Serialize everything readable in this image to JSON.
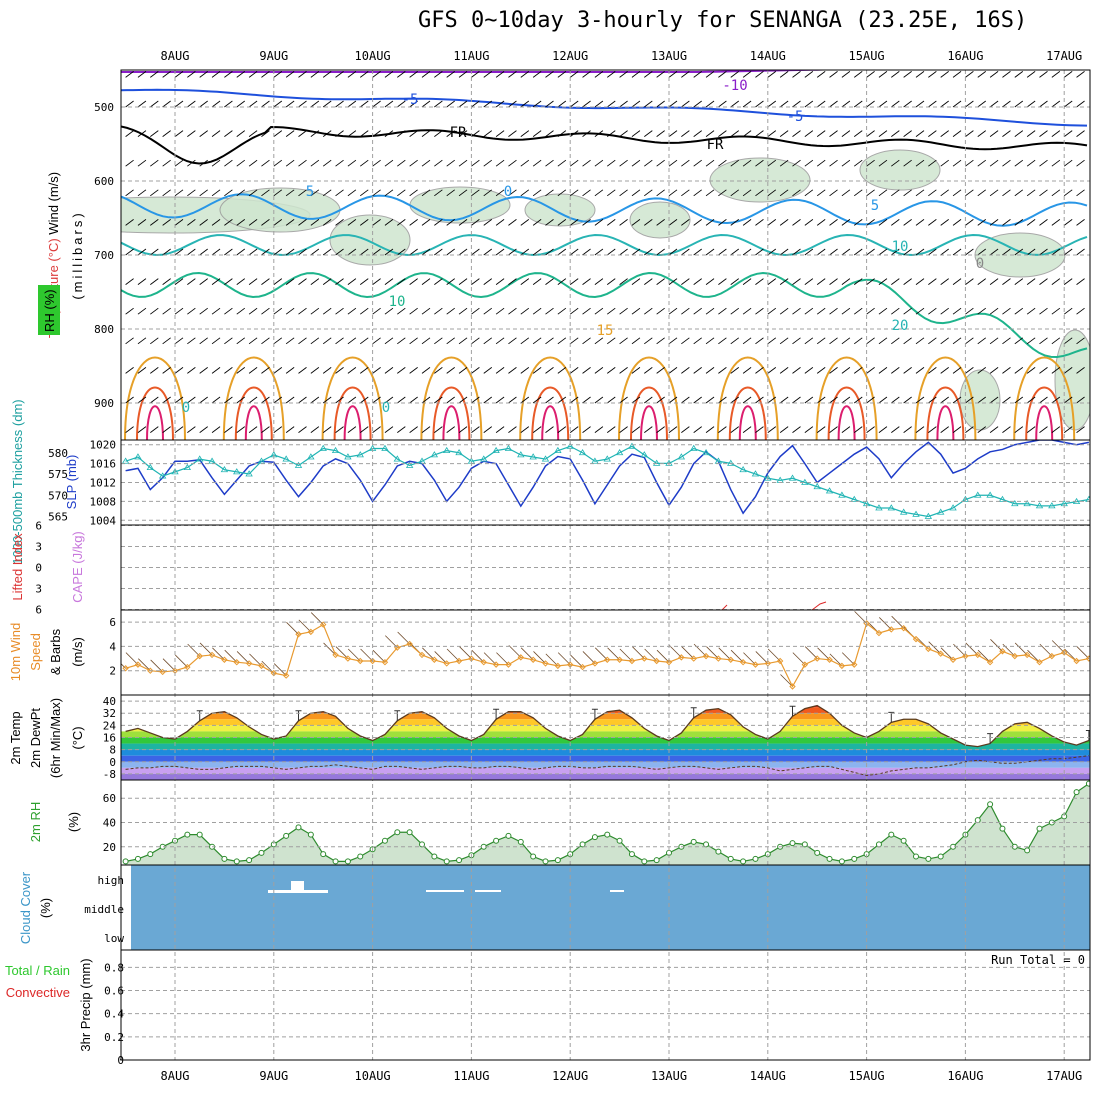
{
  "title": "GFS 0~10day 3-hourly for SENANGA (23.25E, 16S)",
  "dates": [
    "8AUG",
    "9AUG",
    "10AUG",
    "11AUG",
    "12AUG",
    "13AUG",
    "14AUG",
    "15AUG",
    "16AUG",
    "17AUG"
  ],
  "colors": {
    "grid": "#a0a0a0",
    "rh_fill": "#cfe6cf",
    "slp": "#1e3cc8",
    "thickness": "#20b4b4",
    "wind": "#e89a30",
    "cloud_bg": "#6aa8d4",
    "rh2m": "#2e8b2e"
  },
  "chart_data": [
    {
      "type": "line",
      "name": "upper-air-cross-section",
      "ylabel": "Wind (m/s) Temperature (°C) RH (%) (millibars)",
      "ylabels": {
        "wind": "Wind (m/s)",
        "temperature": "Temperature (°C)",
        "rh": "RH (%)",
        "units": "(millibars)"
      },
      "y_ticks": [
        500,
        600,
        700,
        800,
        900
      ],
      "ylim": [
        950,
        450
      ],
      "contour_labels": [
        "-10",
        "-5",
        "-5",
        "FR",
        "FR",
        "5",
        "0",
        "5",
        "10",
        "10",
        "15",
        "20",
        "0",
        "0",
        "0"
      ]
    },
    {
      "type": "line",
      "name": "slp-thickness",
      "ylabels": {
        "left": "1000-500mb Thickness (dm)",
        "right": "SLP (mb)"
      },
      "left_ticks": [
        565,
        570,
        575,
        580
      ],
      "right_ticks": [
        1004,
        1008,
        1012,
        1016,
        1020
      ],
      "x": [
        0,
        1,
        2,
        3,
        4,
        5,
        6,
        7,
        8,
        9,
        10,
        11,
        12,
        13,
        14,
        15,
        16,
        17,
        18,
        19,
        20,
        21,
        22,
        23,
        24,
        25,
        26,
        27,
        28,
        29,
        30,
        31,
        32,
        33,
        34,
        35,
        36,
        37,
        38,
        39,
        40,
        41,
        42,
        43,
        44,
        45,
        46,
        47,
        48,
        49,
        50,
        51,
        52,
        53,
        54,
        55,
        56,
        57,
        58,
        59,
        60,
        61,
        62,
        63,
        64,
        65,
        66,
        67,
        68,
        69,
        70,
        71,
        72,
        73,
        74,
        75,
        76,
        77,
        78
      ],
      "series": [
        {
          "name": "SLP (mb)",
          "values": [
            1014.5,
            1015,
            1010.5,
            1013,
            1016.5,
            1016.5,
            1016.8,
            1013,
            1009.5,
            1012.5,
            1015.5,
            1016.5,
            1016.3,
            1012.5,
            1009,
            1012,
            1015.5,
            1017,
            1016,
            1012.5,
            1008,
            1011.5,
            1015.5,
            1016.5,
            1016,
            1012.5,
            1008,
            1011,
            1015,
            1016.5,
            1016,
            1011.5,
            1007,
            1011,
            1015.5,
            1017.5,
            1017,
            1012.5,
            1007.5,
            1011.5,
            1015.5,
            1018,
            1017.3,
            1012,
            1007.2,
            1011,
            1016,
            1018.5,
            1016.5,
            1010.5,
            1005.5,
            1009,
            1014,
            1017.5,
            1019.8,
            1016,
            1012,
            1014,
            1016,
            1018,
            1019.5,
            1017,
            1013,
            1016,
            1018.5,
            1020.5,
            1018,
            1014,
            1015,
            1017,
            1018.5,
            1019,
            1020,
            1020.5,
            1021,
            1021,
            1020.5,
            1020,
            1020.5
          ]
        },
        {
          "name": "Thickness (dm)",
          "values": [
            578,
            579,
            576.5,
            574.5,
            575.5,
            576.5,
            578.5,
            578,
            576,
            575.5,
            575,
            578,
            579.5,
            578.5,
            577,
            579,
            581,
            580.5,
            579,
            579.5,
            581,
            581,
            578.5,
            577,
            578,
            579.5,
            580.5,
            580,
            578,
            578.5,
            580.5,
            581,
            579.5,
            579,
            578.5,
            580.5,
            581.5,
            580,
            578,
            578.5,
            580,
            581.5,
            579.5,
            577.5,
            577.5,
            579,
            581,
            580,
            578,
            577.5,
            576,
            575,
            574,
            573.5,
            574,
            573,
            572,
            571,
            570,
            569,
            568,
            567,
            567,
            566,
            565.5,
            565,
            566,
            567,
            569,
            570,
            570,
            569,
            568,
            568,
            567.5,
            567.5,
            568,
            568.5,
            569
          ]
        }
      ]
    },
    {
      "type": "line",
      "name": "lifted-index-cape",
      "ylabels": {
        "left": "Lifted Index",
        "right": "CAPE (J/kg)"
      },
      "y_ticks": [
        -6,
        -3,
        0,
        3,
        6
      ],
      "zero_line": 0
    },
    {
      "type": "line",
      "name": "10m-wind",
      "ylabels": {
        "line1": "10m Wind",
        "line2": "Speed",
        "line3": "& Barbs",
        "units": "(m/s)"
      },
      "y_ticks": [
        2,
        4,
        6
      ],
      "ylim": [
        0,
        7
      ],
      "x": [
        0,
        1,
        2,
        3,
        4,
        5,
        6,
        7,
        8,
        9,
        10,
        11,
        12,
        13,
        14,
        15,
        16,
        17,
        18,
        19,
        20,
        21,
        22,
        23,
        24,
        25,
        26,
        27,
        28,
        29,
        30,
        31,
        32,
        33,
        34,
        35,
        36,
        37,
        38,
        39,
        40,
        41,
        42,
        43,
        44,
        45,
        46,
        47,
        48,
        49,
        50,
        51,
        52,
        53,
        54,
        55,
        56,
        57,
        58,
        59,
        60,
        61,
        62,
        63,
        64,
        65,
        66,
        67,
        68,
        69,
        70,
        71,
        72,
        73,
        74,
        75,
        76,
        77,
        78
      ],
      "series": [
        {
          "name": "Speed",
          "values": [
            2.2,
            2.5,
            2.0,
            1.9,
            2.0,
            2.3,
            3.2,
            3.3,
            2.9,
            2.7,
            2.6,
            2.4,
            1.8,
            1.6,
            5.0,
            5.2,
            5.8,
            3.3,
            3.0,
            2.8,
            2.8,
            2.7,
            3.9,
            4.2,
            3.3,
            2.9,
            2.6,
            2.8,
            3.0,
            2.7,
            2.5,
            2.5,
            3.1,
            2.9,
            2.6,
            2.4,
            2.5,
            2.3,
            2.6,
            2.9,
            2.9,
            2.8,
            3.0,
            2.8,
            2.7,
            3.1,
            3.0,
            3.2,
            3.0,
            2.9,
            2.7,
            2.5,
            2.6,
            2.8,
            0.7,
            2.5,
            3.0,
            2.9,
            2.4,
            2.5,
            5.9,
            5.1,
            5.4,
            5.5,
            4.6,
            3.8,
            3.4,
            2.9,
            3.2,
            3.3,
            2.7,
            3.6,
            3.2,
            3.3,
            2.7,
            3.2,
            3.5,
            2.8,
            3.0
          ]
        }
      ]
    },
    {
      "type": "area",
      "name": "2m-temp",
      "ylabels": {
        "line1": "2m Temp",
        "line2": "2m DewPt",
        "line3": "(6hr Min/Max)",
        "units": "(°C)"
      },
      "y_ticks": [
        -8,
        0,
        8,
        16,
        24,
        32,
        40
      ],
      "ylim": [
        -12,
        44
      ],
      "x": [
        0,
        1,
        2,
        3,
        4,
        5,
        6,
        7,
        8,
        9,
        10,
        11,
        12,
        13,
        14,
        15,
        16,
        17,
        18,
        19,
        20,
        21,
        22,
        23,
        24,
        25,
        26,
        27,
        28,
        29,
        30,
        31,
        32,
        33,
        34,
        35,
        36,
        37,
        38,
        39,
        40,
        41,
        42,
        43,
        44,
        45,
        46,
        47,
        48,
        49,
        50,
        51,
        52,
        53,
        54,
        55,
        56,
        57,
        58,
        59,
        60,
        61,
        62,
        63,
        64,
        65,
        66,
        67,
        68,
        69,
        70,
        71,
        72,
        73,
        74,
        75,
        76,
        77,
        78
      ],
      "series": [
        {
          "name": "2m Temp",
          "values": [
            20,
            22,
            19,
            16,
            15,
            20,
            27,
            32,
            33,
            29,
            23,
            18,
            15,
            17,
            27,
            32,
            33,
            30,
            22,
            17,
            14,
            18,
            27,
            32,
            33,
            29,
            22,
            17,
            14,
            18,
            28,
            33,
            33,
            29,
            22,
            17,
            14,
            18,
            28,
            33,
            34,
            29,
            22,
            17,
            14,
            19,
            29,
            34,
            35,
            31,
            23,
            18,
            15,
            20,
            30,
            35,
            37,
            32,
            24,
            19,
            16,
            20,
            26,
            28,
            28,
            25,
            19,
            15,
            11,
            10,
            12,
            20,
            25,
            26,
            22,
            17,
            13,
            11,
            14
          ]
        },
        {
          "name": "2m DewPt",
          "values": [
            -5,
            -4,
            -4,
            -3,
            -3,
            -4,
            -5,
            -5,
            -4,
            -3,
            -3,
            -3,
            -4,
            -5,
            -4,
            -3,
            -3,
            -2,
            -3,
            -4,
            -5,
            -3,
            -3,
            -4,
            -5,
            -4,
            -3,
            -3,
            -4,
            -4,
            -3,
            -3,
            -4,
            -5,
            -4,
            -3,
            -3,
            -4,
            -4,
            -3,
            -3,
            -3,
            -4,
            -5,
            -4,
            -3,
            -3,
            -4,
            -5,
            -4,
            -3,
            -3,
            -4,
            -6,
            -5,
            -4,
            -3,
            -3,
            -5,
            -7,
            -9,
            -8,
            -6,
            -5,
            -4,
            -4,
            -3,
            -2,
            0,
            1,
            0,
            -1,
            -1,
            0,
            1,
            2,
            2,
            3,
            4
          ]
        }
      ]
    },
    {
      "type": "area",
      "name": "2m-rh",
      "ylabels": {
        "line1": "2m RH",
        "units": "(%)"
      },
      "y_ticks": [
        20,
        40,
        60
      ],
      "ylim": [
        5,
        75
      ],
      "x": [
        0,
        1,
        2,
        3,
        4,
        5,
        6,
        7,
        8,
        9,
        10,
        11,
        12,
        13,
        14,
        15,
        16,
        17,
        18,
        19,
        20,
        21,
        22,
        23,
        24,
        25,
        26,
        27,
        28,
        29,
        30,
        31,
        32,
        33,
        34,
        35,
        36,
        37,
        38,
        39,
        40,
        41,
        42,
        43,
        44,
        45,
        46,
        47,
        48,
        49,
        50,
        51,
        52,
        53,
        54,
        55,
        56,
        57,
        58,
        59,
        60,
        61,
        62,
        63,
        64,
        65,
        66,
        67,
        68,
        69,
        70,
        71,
        72,
        73,
        74,
        75,
        76,
        77,
        78
      ],
      "series": [
        {
          "name": "2m RH",
          "values": [
            8,
            10,
            14,
            20,
            25,
            30,
            30,
            20,
            10,
            8,
            9,
            15,
            22,
            29,
            36,
            30,
            14,
            8,
            8,
            12,
            18,
            25,
            32,
            32,
            22,
            12,
            8,
            9,
            13,
            20,
            25,
            29,
            24,
            12,
            8,
            9,
            14,
            22,
            28,
            30,
            25,
            14,
            8,
            9,
            15,
            20,
            24,
            22,
            16,
            10,
            8,
            10,
            14,
            20,
            23,
            22,
            15,
            10,
            8,
            10,
            14,
            22,
            30,
            25,
            12,
            10,
            12,
            20,
            30,
            42,
            55,
            35,
            20,
            17,
            35,
            40,
            45,
            65,
            72
          ]
        }
      ]
    },
    {
      "type": "heatmap",
      "name": "cloud-cover",
      "ylabels": {
        "line1": "Cloud Cover",
        "units": "(%)"
      },
      "y_ticks": [
        "high",
        "middle",
        "low"
      ]
    },
    {
      "type": "bar",
      "name": "precip",
      "ylabels": {
        "line1": "Total / Rain",
        "line2": "Convective",
        "units": "3hr Precip (mm)"
      },
      "y_ticks": [
        0,
        0.2,
        0.4,
        0.6,
        0.8
      ],
      "ylim": [
        0,
        0.95
      ],
      "run_total": "Run Total = 0",
      "values": []
    }
  ]
}
